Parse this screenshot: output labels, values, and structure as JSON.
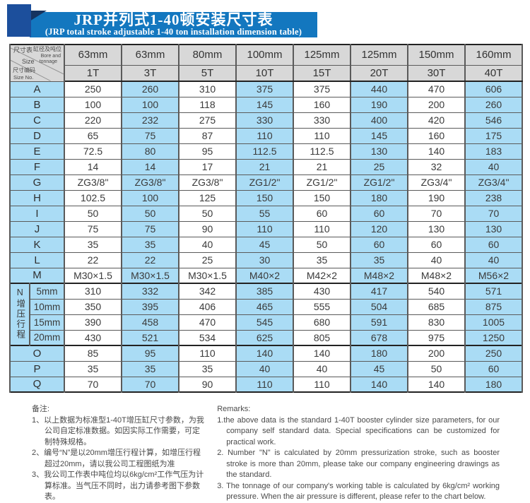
{
  "colors": {
    "banner_blue": "#1377bf",
    "banner_square_blue": "#1c4f9c",
    "banner_fold_navy": "#16335f",
    "cell_blue": "#aadcf5",
    "header_gray": "#d8d8d8"
  },
  "banner": {
    "title_cn": "JRP并列式1-40顿安装尺寸表",
    "title_en": "(JRP total stroke adjustable 1-40 ton installation dimension table)"
  },
  "table": {
    "corner": {
      "size_table": "尺寸表",
      "bore_cn": "缸径及吨位",
      "bore_en1": "Bore and",
      "bore_en2": "tonnage",
      "size_label": "Size",
      "size_no_cn": "尺寸编码",
      "size_no_en": "Size No."
    },
    "bores": [
      "63mm",
      "63mm",
      "80mm",
      "100mm",
      "125mm",
      "125mm",
      "150mm",
      "160mm"
    ],
    "tonnages": [
      "1T",
      "3T",
      "5T",
      "10T",
      "15T",
      "20T",
      "30T",
      "40T"
    ],
    "rows": [
      {
        "label": "A",
        "values": [
          "250",
          "260",
          "310",
          "375",
          "375",
          "440",
          "470",
          "606"
        ]
      },
      {
        "label": "B",
        "values": [
          "100",
          "100",
          "118",
          "145",
          "160",
          "190",
          "200",
          "260"
        ]
      },
      {
        "label": "C",
        "values": [
          "220",
          "232",
          "275",
          "330",
          "330",
          "400",
          "420",
          "546"
        ]
      },
      {
        "label": "D",
        "values": [
          "65",
          "75",
          "87",
          "110",
          "110",
          "145",
          "160",
          "175"
        ]
      },
      {
        "label": "E",
        "values": [
          "72.5",
          "80",
          "95",
          "112.5",
          "112.5",
          "130",
          "140",
          "183"
        ]
      },
      {
        "label": "F",
        "values": [
          "14",
          "14",
          "17",
          "21",
          "21",
          "25",
          "32",
          "40"
        ]
      },
      {
        "label": "G",
        "values": [
          "ZG3/8\"",
          "ZG3/8\"",
          "ZG3/8\"",
          "ZG1/2\"",
          "ZG1/2\"",
          "ZG1/2\"",
          "ZG3/4\"",
          "ZG3/4\""
        ]
      },
      {
        "label": "H",
        "values": [
          "102.5",
          "100",
          "125",
          "150",
          "150",
          "180",
          "190",
          "238"
        ]
      },
      {
        "label": "I",
        "values": [
          "50",
          "50",
          "50",
          "55",
          "60",
          "60",
          "70",
          "70"
        ]
      },
      {
        "label": "J",
        "values": [
          "75",
          "75",
          "90",
          "110",
          "110",
          "120",
          "130",
          "130"
        ]
      },
      {
        "label": "K",
        "values": [
          "35",
          "35",
          "40",
          "45",
          "50",
          "60",
          "60",
          "60"
        ]
      },
      {
        "label": "L",
        "values": [
          "22",
          "22",
          "25",
          "30",
          "35",
          "35",
          "40",
          "40"
        ]
      },
      {
        "label": "M",
        "values": [
          "M30×1.5",
          "M30×1.5",
          "M30×1.5",
          "M40×2",
          "M42×2",
          "M48×2",
          "M48×2",
          "M56×2"
        ]
      }
    ],
    "n_block": {
      "label": "N增压行程",
      "sub_rows": [
        {
          "label": "5mm",
          "values": [
            "310",
            "332",
            "342",
            "385",
            "430",
            "417",
            "540",
            "571"
          ]
        },
        {
          "label": "10mm",
          "values": [
            "350",
            "395",
            "406",
            "465",
            "555",
            "504",
            "685",
            "875"
          ]
        },
        {
          "label": "15mm",
          "values": [
            "390",
            "458",
            "470",
            "545",
            "680",
            "591",
            "830",
            "1005"
          ]
        },
        {
          "label": "20mm",
          "values": [
            "430",
            "521",
            "534",
            "625",
            "805",
            "678",
            "975",
            "1250"
          ]
        }
      ]
    },
    "tail_rows": [
      {
        "label": "O",
        "values": [
          "85",
          "95",
          "110",
          "140",
          "140",
          "180",
          "200",
          "250"
        ]
      },
      {
        "label": "P",
        "values": [
          "35",
          "35",
          "35",
          "40",
          "40",
          "45",
          "50",
          "60"
        ]
      },
      {
        "label": "Q",
        "values": [
          "70",
          "70",
          "90",
          "110",
          "110",
          "140",
          "140",
          "180"
        ]
      }
    ]
  },
  "notes_cn": {
    "heading": "备注:",
    "items": [
      "1、以上数据为标准型1-40T增压缸尺寸参数，为我公司自定标准数据。如因实际工作需要，可定制特殊规格。",
      "2、编号“N”是以20mm增压行程计算，如增压行程超过20mm，请以我公司工程图纸为准",
      "3、我公司工作表中吨位均以6kg/cm²工作气压为计算标准。当气压不同时，出力请参考图下参数表。"
    ]
  },
  "notes_en": {
    "heading": "Remarks:",
    "items": [
      "1.the above data is the standard 1-40T booster cylinder size parameters, for our company self standard data. Special specifications can be customized for practical work.",
      "2. Number \"N\" is calculated by 20mm pressurization stroke, such as booster stroke is more than 20mm, please take our company engineering drawings as the standard.",
      "3. The tonnage of our company's working table is calculated by 6kg/cm² working pressure. When the air pressure is different, please refer to the chart below."
    ]
  }
}
